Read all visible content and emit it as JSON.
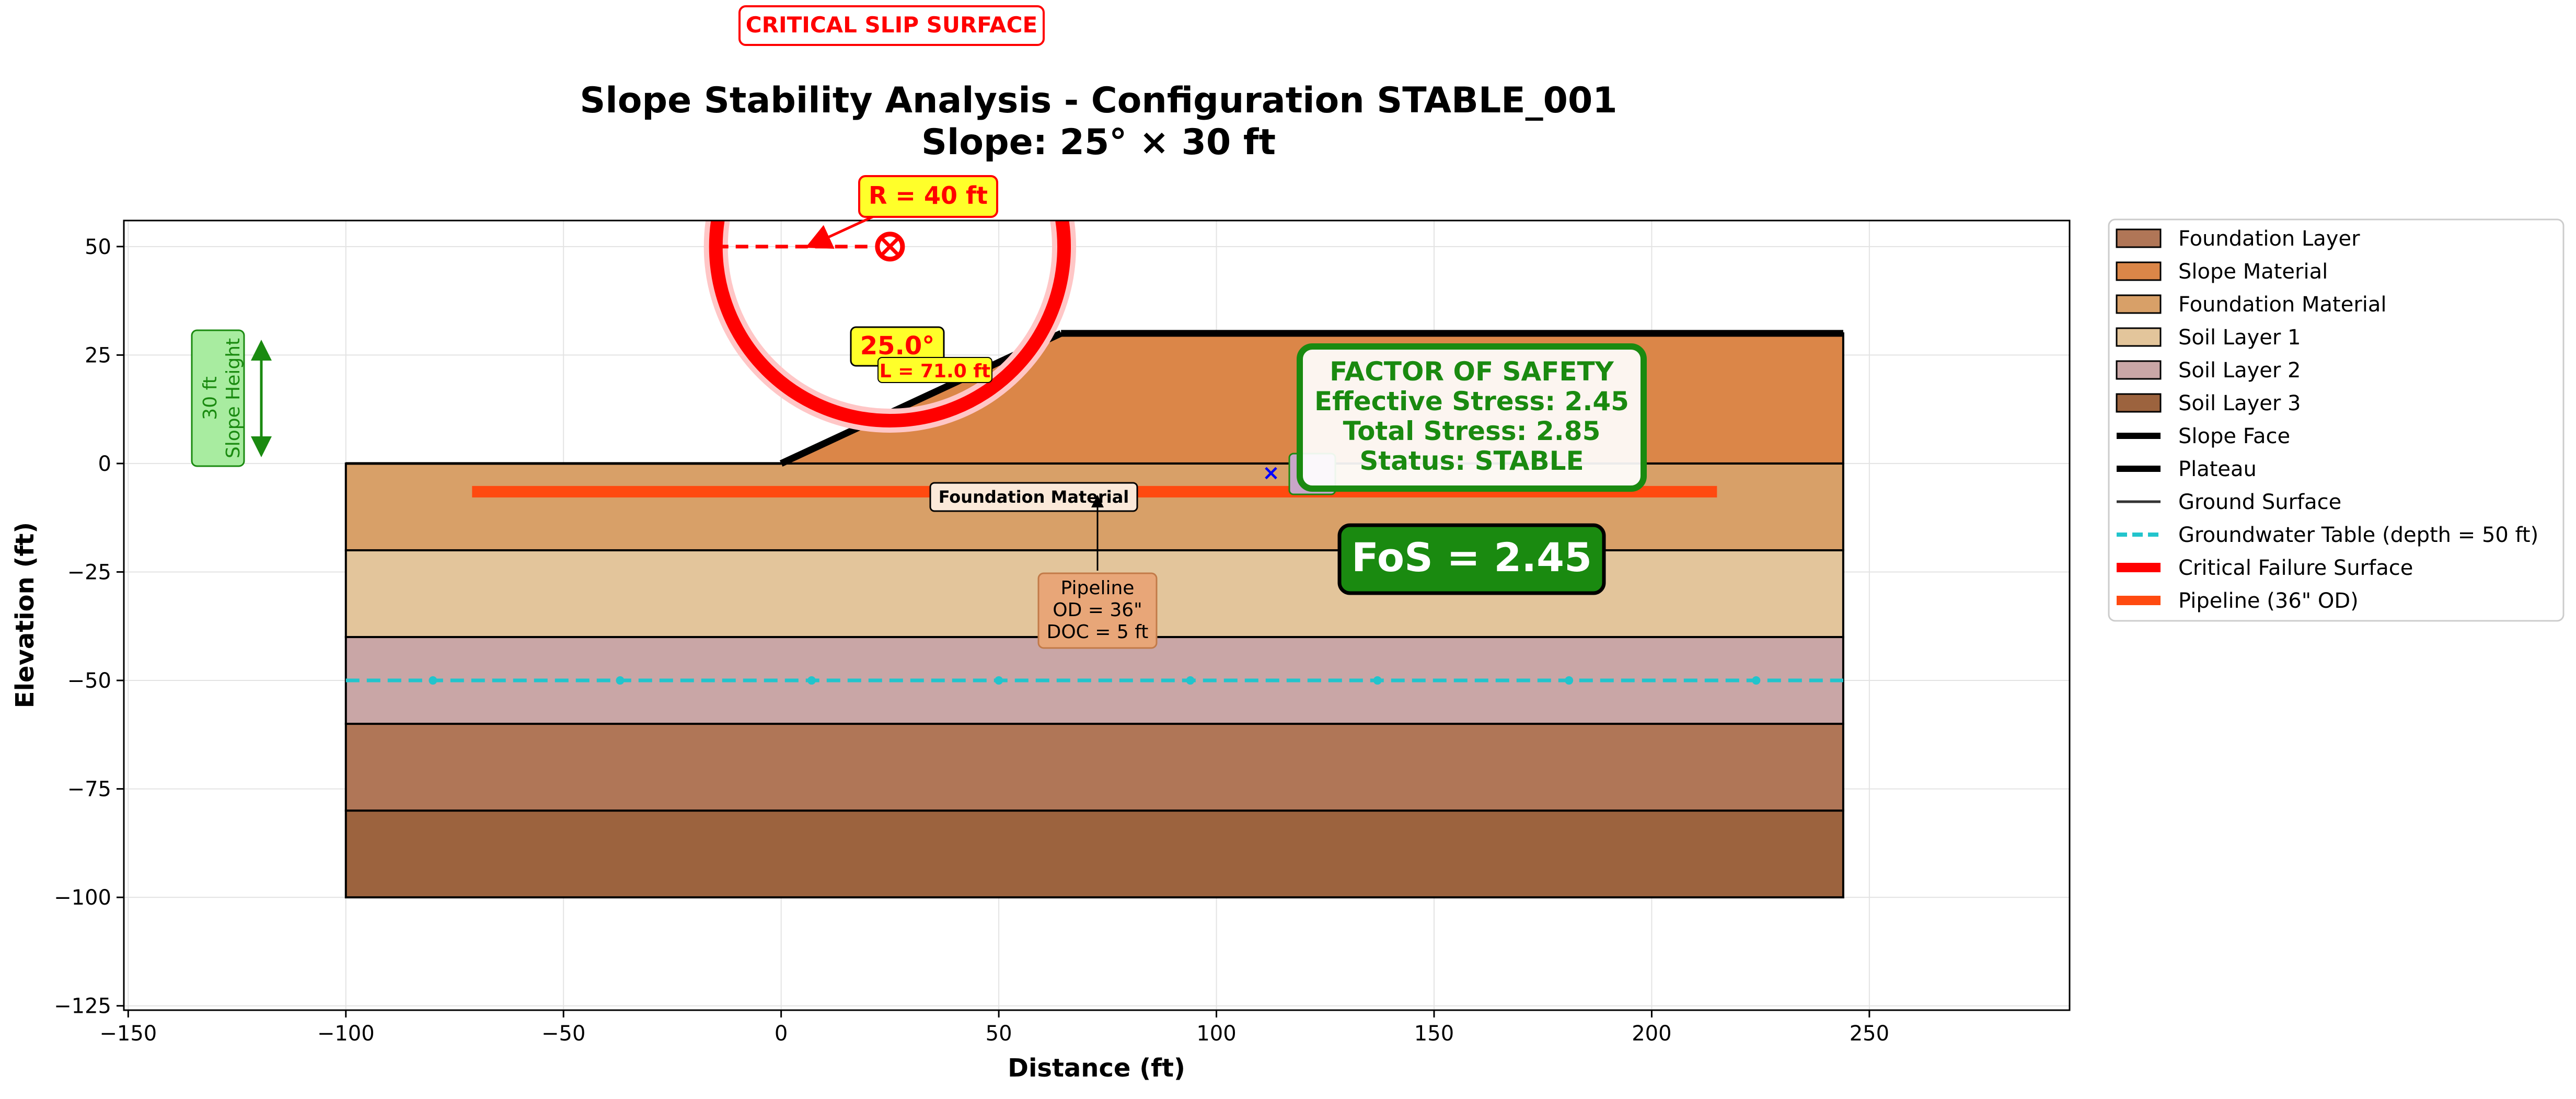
{
  "chart_data": {
    "type": "area",
    "title": "Slope Stability Analysis - Configuration STABLE_001",
    "subtitle": "Slope: 25° × 30 ft",
    "xlabel": "Distance (ft)",
    "ylabel": "Elevation (ft)",
    "xlim": [
      -151,
      296
    ],
    "ylim": [
      -126,
      56
    ],
    "x_ticks": [
      -150,
      -100,
      -50,
      0,
      50,
      100,
      150,
      200,
      250
    ],
    "y_ticks": [
      -125,
      -100,
      -75,
      -50,
      -25,
      0,
      25,
      50
    ],
    "x_tick_labels": [
      "−150",
      "−100",
      "−50",
      "0",
      "50",
      "100",
      "150",
      "200",
      "250"
    ],
    "y_tick_labels": [
      "−125",
      "−100",
      "−75",
      "−50",
      "−25",
      "0",
      "25",
      "50"
    ],
    "grid": true,
    "legend_position": "outside-right",
    "layers": [
      {
        "name": "Soil Layer 3",
        "x": [
          -100,
          244
        ],
        "top": -80,
        "bottom": -100,
        "color": "#9c633e"
      },
      {
        "name": "Foundation Layer",
        "x": [
          -100,
          244
        ],
        "top": -60,
        "bottom": -80,
        "color": "#b07657"
      },
      {
        "name": "Soil Layer 2",
        "x": [
          -100,
          244
        ],
        "top": -40,
        "bottom": -60,
        "color": "#c9a6a6"
      },
      {
        "name": "Soil Layer 1",
        "x": [
          -100,
          244
        ],
        "top": -20,
        "bottom": -40,
        "color": "#e3c59b"
      },
      {
        "name": "Foundation Material",
        "x": [
          -100,
          244
        ],
        "top": 0,
        "bottom": -20,
        "color": "#d8a068"
      },
      {
        "name": "Slope Material",
        "polygon": [
          [
            0,
            0
          ],
          [
            64.3,
            30
          ],
          [
            244,
            30
          ],
          [
            244,
            0
          ]
        ],
        "color": "#db8648"
      }
    ],
    "lines": {
      "slope_face": [
        [
          0,
          0
        ],
        [
          64.3,
          30
        ]
      ],
      "plateau": [
        [
          64.3,
          30
        ],
        [
          244,
          30
        ]
      ],
      "ground_surface": [
        [
          -100,
          0
        ],
        [
          0,
          0
        ]
      ],
      "groundwater_table": {
        "y": -50,
        "x": [
          -100,
          244
        ],
        "markers": [
          -80,
          -37,
          7,
          50,
          94,
          137,
          181,
          224
        ]
      },
      "pipeline": {
        "y": -6.5,
        "x": [
          -71,
          215
        ]
      }
    },
    "failure_circle": {
      "center": [
        25,
        50
      ],
      "radius": 40
    },
    "legend": [
      {
        "label": "Foundation Layer",
        "kind": "patch",
        "color": "#b07657"
      },
      {
        "label": "Slope Material",
        "kind": "patch",
        "color": "#db8648"
      },
      {
        "label": "Foundation Material",
        "kind": "patch",
        "color": "#d8a068"
      },
      {
        "label": "Soil Layer 1",
        "kind": "patch",
        "color": "#e3c59b"
      },
      {
        "label": "Soil Layer 2",
        "kind": "patch",
        "color": "#c9a6a6"
      },
      {
        "label": "Soil Layer 3",
        "kind": "patch",
        "color": "#9c633e"
      },
      {
        "label": "Slope Face",
        "kind": "line",
        "color": "#000000"
      },
      {
        "label": "Plateau",
        "kind": "line",
        "color": "#000000"
      },
      {
        "label": "Ground Surface",
        "kind": "line",
        "color": "#333333"
      },
      {
        "label": "Groundwater Table (depth = 50 ft)",
        "kind": "dash",
        "color": "#22c4cc"
      },
      {
        "label": "Critical Failure Surface",
        "kind": "line",
        "color": "#ff0000"
      },
      {
        "label": "Pipeline (36\" OD)",
        "kind": "line",
        "color": "#ff4a10"
      }
    ],
    "annotations": {
      "critical_slip_surface": "CRITICAL SLIP SURFACE",
      "radius": "R = 40 ft",
      "angle": "25.0°",
      "length": "L = 71.0 ft",
      "slope_height": [
        "30 ft",
        "Slope Height"
      ],
      "foundation_material": "Foundation Material",
      "pipeline": [
        "Pipeline",
        "OD = 36\"",
        "DOC = 5 ft"
      ],
      "factor_of_safety": [
        "FACTOR OF SAFETY",
        "Effective Stress: 2.45",
        "Total Stress: 2.85",
        "Status: STABLE"
      ],
      "fos": "FoS = 2.45"
    },
    "colors": {
      "failure": "#ff0000",
      "stable_green": "#1a8a10",
      "groundwater": "#22c4cc",
      "pipeline": "#ff4a10",
      "annotation_yellow": "#ffff2a"
    }
  }
}
